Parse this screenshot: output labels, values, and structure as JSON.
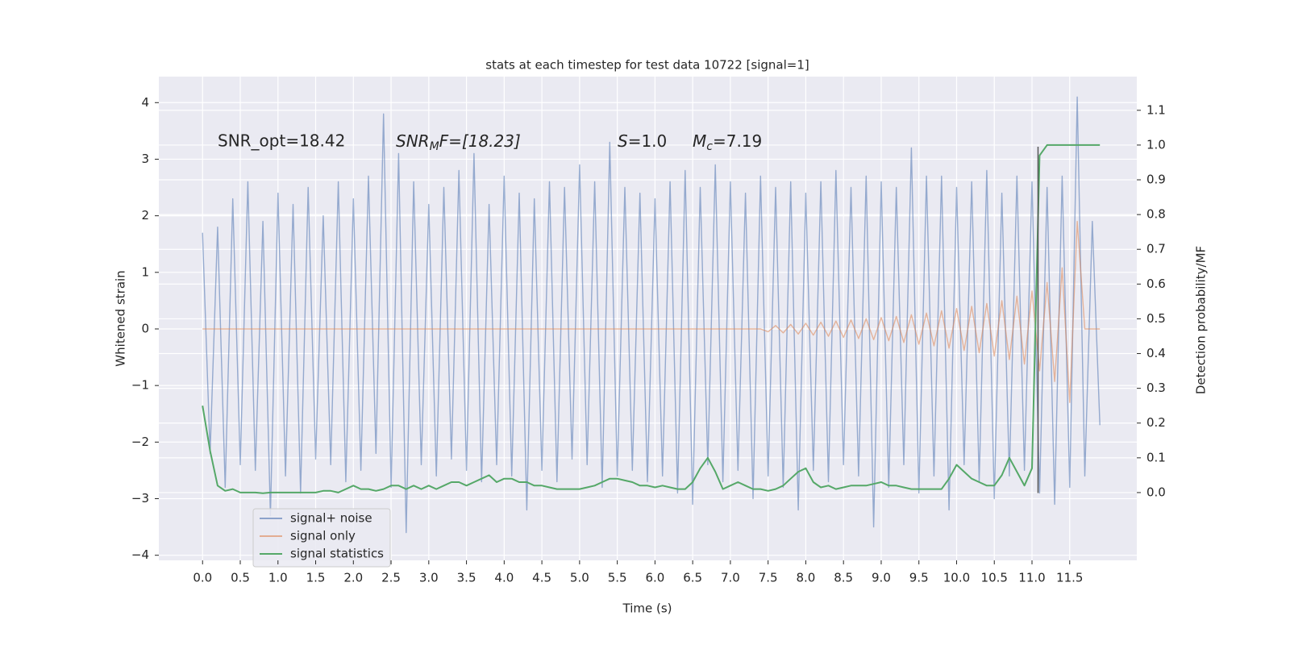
{
  "chart_data": {
    "type": "line",
    "title": "stats at each timestep for test data 10722 [signal=1]",
    "xlabel": "Time (s)",
    "ylabel": "Whitened strain",
    "y2label": "Detection probability/MF",
    "annotations": [
      {
        "main": "SNR_opt=18.42"
      },
      {
        "main": "SNR",
        "sub": "M",
        "rest": "F=[18.23]"
      },
      {
        "main": "S",
        "rest": "=1.0"
      },
      {
        "main": "M",
        "sub": "c",
        "rest": "=7.19"
      }
    ],
    "grid": true,
    "legend": "lower left",
    "xlim": [
      -0.58,
      12.39
    ],
    "ylim": [
      -4.09,
      4.46
    ],
    "y2lim": [
      -0.195,
      1.197
    ],
    "xticks": [
      {
        "value": 0,
        "label": "0.0"
      },
      {
        "value": 0.5,
        "label": "0.5"
      },
      {
        "value": 1,
        "label": "1.0"
      },
      {
        "value": 1.5,
        "label": "1.5"
      },
      {
        "value": 2,
        "label": "2.0"
      },
      {
        "value": 2.5,
        "label": "2.5"
      },
      {
        "value": 3,
        "label": "3.0"
      },
      {
        "value": 3.5,
        "label": "3.5"
      },
      {
        "value": 4,
        "label": "4.0"
      },
      {
        "value": 4.5,
        "label": "4.5"
      },
      {
        "value": 5,
        "label": "5.0"
      },
      {
        "value": 5.5,
        "label": "5.5"
      },
      {
        "value": 6,
        "label": "6.0"
      },
      {
        "value": 6.5,
        "label": "6.5"
      },
      {
        "value": 7,
        "label": "7.0"
      },
      {
        "value": 7.5,
        "label": "7.5"
      },
      {
        "value": 8,
        "label": "8.0"
      },
      {
        "value": 8.5,
        "label": "8.5"
      },
      {
        "value": 9,
        "label": "9.0"
      },
      {
        "value": 9.5,
        "label": "9.5"
      },
      {
        "value": 10,
        "label": "10.0"
      },
      {
        "value": 10.5,
        "label": "10.5"
      },
      {
        "value": 11,
        "label": "11.0"
      },
      {
        "value": 11.5,
        "label": "11.5"
      }
    ],
    "yticks": [
      4,
      3,
      2,
      1,
      0,
      {
        "value": -1,
        "label": "−1"
      },
      {
        "value": -2,
        "label": "−2"
      },
      {
        "value": -3,
        "label": "−3"
      },
      {
        "value": -4,
        "label": "−4"
      }
    ],
    "y2ticks": [
      {
        "value": 0,
        "label": "0.0"
      },
      {
        "value": 0.1,
        "label": "0.1"
      },
      {
        "value": 0.2,
        "label": "0.2"
      },
      {
        "value": 0.3,
        "label": "0.3"
      },
      {
        "value": 0.4,
        "label": "0.4"
      },
      {
        "value": 0.5,
        "label": "0.5"
      },
      {
        "value": 0.6,
        "label": "0.6"
      },
      {
        "value": 0.7,
        "label": "0.7"
      },
      {
        "value": 0.8,
        "label": "0.8"
      },
      {
        "value": 0.9,
        "label": "0.9"
      },
      {
        "value": 1,
        "label": "1.0"
      },
      {
        "value": 1.1,
        "label": "1.1"
      }
    ],
    "x": [
      0,
      0.1,
      0.2,
      0.3,
      0.4,
      0.5,
      0.6,
      0.7,
      0.8,
      0.9,
      1,
      1.1,
      1.2,
      1.3,
      1.4,
      1.5,
      1.6,
      1.7,
      1.8,
      1.9,
      2,
      2.1,
      2.2,
      2.3,
      2.4,
      2.5,
      2.6,
      2.7,
      2.8,
      2.9,
      3,
      3.1,
      3.2,
      3.3,
      3.4,
      3.5,
      3.6,
      3.7,
      3.8,
      3.9,
      4,
      4.1,
      4.2,
      4.3,
      4.4,
      4.5,
      4.6,
      4.7,
      4.8,
      4.9,
      5,
      5.1,
      5.2,
      5.3,
      5.4,
      5.5,
      5.6,
      5.7,
      5.8,
      5.9,
      6,
      6.1,
      6.2,
      6.3,
      6.4,
      6.5,
      6.6,
      6.7,
      6.8,
      6.9,
      7,
      7.1,
      7.2,
      7.3,
      7.4,
      7.5,
      7.6,
      7.7,
      7.8,
      7.9,
      8,
      8.1,
      8.2,
      8.3,
      8.4,
      8.5,
      8.6,
      8.7,
      8.8,
      8.9,
      9,
      9.1,
      9.2,
      9.3,
      9.4,
      9.5,
      9.6,
      9.7,
      9.8,
      9.9,
      10,
      10.1,
      10.2,
      10.3,
      10.4,
      10.5,
      10.6,
      10.7,
      10.8,
      10.9,
      11,
      11.1,
      11.2,
      11.3,
      11.4,
      11.5,
      11.6,
      11.7,
      11.8,
      11.9
    ],
    "series": [
      {
        "name": "signal+ noise",
        "color": "#4c72b0",
        "values": [
          1.7,
          -2.2,
          1.8,
          -2.8,
          2.3,
          -2.4,
          2.6,
          -2.5,
          1.9,
          -3.3,
          2.4,
          -2.6,
          2.2,
          -2.9,
          2.5,
          -2.3,
          2.0,
          -2.4,
          2.6,
          -2.7,
          2.3,
          -2.5,
          2.7,
          -2.2,
          3.8,
          -2.8,
          3.1,
          -3.6,
          2.6,
          -2.4,
          2.2,
          -2.6,
          2.5,
          -2.3,
          2.8,
          -2.5,
          3.1,
          -2.7,
          2.2,
          -2.4,
          2.7,
          -2.6,
          2.4,
          -3.2,
          2.3,
          -2.5,
          2.6,
          -2.7,
          2.5,
          -2.3,
          2.9,
          -2.4,
          2.6,
          -2.8,
          3.3,
          -2.6,
          2.5,
          -2.5,
          2.4,
          -2.7,
          2.3,
          -2.6,
          2.6,
          -2.9,
          2.8,
          -3.1,
          2.5,
          -2.4,
          2.9,
          -2.7,
          2.6,
          -2.5,
          2.4,
          -3.0,
          2.7,
          -2.6,
          2.5,
          -2.8,
          2.6,
          -3.2,
          2.4,
          -2.5,
          2.6,
          -2.7,
          2.8,
          -2.4,
          2.5,
          -2.6,
          2.7,
          -3.5,
          2.6,
          -2.8,
          2.5,
          -2.4,
          3.2,
          -2.9,
          2.7,
          -2.6,
          2.7,
          -3.2,
          2.5,
          -2.4,
          2.6,
          -2.7,
          2.8,
          -3.0,
          2.4,
          -2.6,
          2.7,
          -2.5,
          2.6,
          -2.9,
          2.5,
          -3.1,
          2.7,
          -2.8,
          4.1,
          -2.6,
          1.9,
          -1.7
        ]
      },
      {
        "name": "signal only",
        "color": "#dd8452",
        "values": [
          0,
          0,
          0,
          0,
          0,
          0,
          0,
          0,
          0,
          0,
          0,
          0,
          0,
          0,
          0,
          0,
          0,
          0,
          0,
          0,
          0,
          0,
          0,
          0,
          0,
          0,
          0,
          0,
          0,
          0,
          0,
          0,
          0,
          0,
          0,
          0,
          0,
          0,
          0,
          0,
          0,
          0,
          0,
          0,
          0,
          0,
          0,
          0,
          0,
          0,
          0,
          0,
          0,
          0,
          0,
          0,
          0,
          0,
          0,
          0,
          0,
          0,
          0,
          0,
          0,
          0,
          0,
          0,
          0,
          0,
          0,
          0,
          0,
          0,
          0,
          -0.05,
          0.06,
          -0.07,
          0.08,
          -0.09,
          0.1,
          -0.11,
          0.12,
          -0.13,
          0.14,
          -0.15,
          0.16,
          -0.17,
          0.18,
          -0.19,
          0.2,
          -0.21,
          0.22,
          -0.24,
          0.25,
          -0.27,
          0.28,
          -0.3,
          0.32,
          -0.34,
          0.36,
          -0.38,
          0.4,
          -0.42,
          0.45,
          -0.48,
          0.5,
          -0.54,
          0.58,
          -0.62,
          0.67,
          -0.74,
          0.82,
          -0.93,
          1.08,
          -1.3,
          1.9,
          0,
          0,
          0
        ]
      },
      {
        "name": "signal statistics",
        "color": "#55a868",
        "axis": "y2",
        "values": [
          0.25,
          0.12,
          0.02,
          0.005,
          0.01,
          0.0,
          0.0,
          0.0,
          -0.002,
          0.0,
          0.0,
          0.0,
          0.0,
          0.0,
          0.0,
          0.0,
          0.005,
          0.005,
          0.0,
          0.01,
          0.02,
          0.01,
          0.01,
          0.005,
          0.01,
          0.02,
          0.02,
          0.01,
          0.02,
          0.01,
          0.02,
          0.01,
          0.02,
          0.03,
          0.03,
          0.02,
          0.03,
          0.04,
          0.05,
          0.03,
          0.04,
          0.04,
          0.03,
          0.03,
          0.02,
          0.02,
          0.015,
          0.01,
          0.01,
          0.01,
          0.01,
          0.015,
          0.02,
          0.03,
          0.04,
          0.04,
          0.035,
          0.03,
          0.02,
          0.02,
          0.015,
          0.02,
          0.015,
          0.01,
          0.01,
          0.03,
          0.07,
          0.1,
          0.06,
          0.01,
          0.02,
          0.03,
          0.02,
          0.01,
          0.01,
          0.005,
          0.01,
          0.02,
          0.04,
          0.06,
          0.07,
          0.03,
          0.015,
          0.02,
          0.01,
          0.015,
          0.02,
          0.02,
          0.02,
          0.025,
          0.03,
          0.02,
          0.02,
          0.015,
          0.01,
          0.01,
          0.01,
          0.01,
          0.01,
          0.04,
          0.08,
          0.06,
          0.04,
          0.03,
          0.02,
          0.02,
          0.05,
          0.1,
          0.06,
          0.02,
          0.07,
          0.97,
          1.0,
          1.0,
          1.0,
          1.0,
          1.0,
          1.0,
          1.0,
          1.0
        ]
      }
    ],
    "vline": {
      "x": 11.08,
      "y": [
        -2.9,
        3.22
      ],
      "color": "#555555"
    }
  }
}
